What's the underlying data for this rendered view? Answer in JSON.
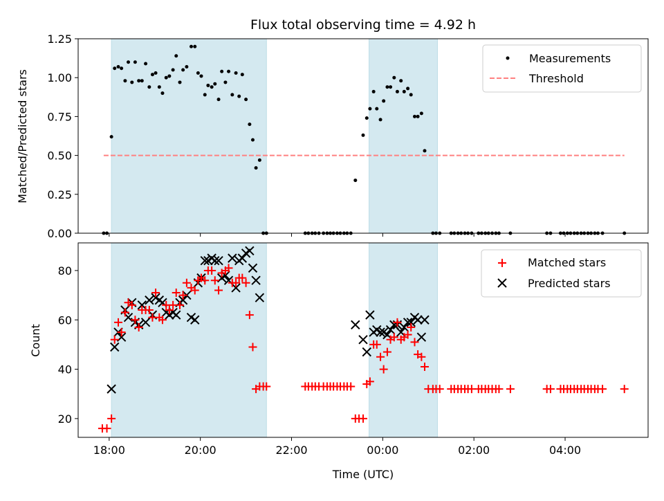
{
  "chart_data": {
    "title": "Flux total observing time = 4.92 h",
    "xlabel": "Time (UTC)",
    "x_unit": "hours since 18:00 UTC (day 1)",
    "x_ticks": [
      {
        "x": 0,
        "label": "18:00"
      },
      {
        "x": 2,
        "label": "20:00"
      },
      {
        "x": 4,
        "label": "22:00"
      },
      {
        "x": 6,
        "label": "00:00"
      },
      {
        "x": 8,
        "label": "02:00"
      },
      {
        "x": 10,
        "label": "04:00"
      }
    ],
    "xlim": [
      -0.68,
      11.82
    ],
    "shaded_intervals": [
      [
        0.05,
        3.45
      ],
      [
        5.7,
        7.2
      ]
    ],
    "shade_color": "#d4e9f0",
    "top": {
      "type": "scatter",
      "ylabel": "Matched/Predicted stars",
      "ylim": [
        0,
        1.25
      ],
      "y_ticks": [
        "0.00",
        "0.25",
        "0.50",
        "0.75",
        "1.00",
        "1.25"
      ],
      "threshold": 0.5,
      "threshold_range": [
        -0.12,
        11.3
      ],
      "legend": [
        {
          "label": "Measurements",
          "marker": "dot",
          "color": "#000000"
        },
        {
          "label": "Threshold",
          "marker": "dashed-line",
          "color": "#ff8080"
        }
      ],
      "measurements": [
        [
          -0.12,
          0
        ],
        [
          -0.05,
          0
        ],
        [
          0.05,
          0.62
        ],
        [
          0.12,
          1.06
        ],
        [
          0.2,
          1.07
        ],
        [
          0.27,
          1.06
        ],
        [
          0.35,
          0.98
        ],
        [
          0.42,
          1.1
        ],
        [
          0.5,
          0.97
        ],
        [
          0.57,
          1.1
        ],
        [
          0.65,
          0.98
        ],
        [
          0.72,
          0.98
        ],
        [
          0.8,
          1.09
        ],
        [
          0.88,
          0.94
        ],
        [
          0.95,
          1.02
        ],
        [
          1.02,
          1.03
        ],
        [
          1.1,
          0.94
        ],
        [
          1.17,
          0.9
        ],
        [
          1.25,
          1.0
        ],
        [
          1.32,
          1.01
        ],
        [
          1.4,
          1.05
        ],
        [
          1.47,
          1.14
        ],
        [
          1.55,
          0.97
        ],
        [
          1.62,
          1.05
        ],
        [
          1.7,
          1.07
        ],
        [
          1.8,
          1.2
        ],
        [
          1.88,
          1.2
        ],
        [
          1.95,
          1.03
        ],
        [
          2.02,
          1.01
        ],
        [
          2.1,
          0.89
        ],
        [
          2.17,
          0.95
        ],
        [
          2.25,
          0.94
        ],
        [
          2.32,
          0.96
        ],
        [
          2.4,
          0.86
        ],
        [
          2.47,
          1.04
        ],
        [
          2.55,
          0.97
        ],
        [
          2.62,
          1.04
        ],
        [
          2.7,
          0.89
        ],
        [
          2.78,
          1.03
        ],
        [
          2.85,
          0.88
        ],
        [
          2.92,
          1.02
        ],
        [
          3.0,
          0.86
        ],
        [
          3.08,
          0.7
        ],
        [
          3.15,
          0.6
        ],
        [
          3.22,
          0.42
        ],
        [
          3.3,
          0.47
        ],
        [
          3.38,
          0
        ],
        [
          3.45,
          0
        ],
        [
          4.3,
          0
        ],
        [
          4.37,
          0
        ],
        [
          4.45,
          0
        ],
        [
          4.52,
          0
        ],
        [
          4.6,
          0
        ],
        [
          4.7,
          0
        ],
        [
          4.78,
          0
        ],
        [
          4.85,
          0
        ],
        [
          4.92,
          0
        ],
        [
          5.0,
          0
        ],
        [
          5.07,
          0
        ],
        [
          5.15,
          0
        ],
        [
          5.22,
          0
        ],
        [
          5.3,
          0
        ],
        [
          5.4,
          0.34
        ],
        [
          5.57,
          0.63
        ],
        [
          5.65,
          0.74
        ],
        [
          5.72,
          0.8
        ],
        [
          5.8,
          0.91
        ],
        [
          5.87,
          0.8
        ],
        [
          5.95,
          0.73
        ],
        [
          6.02,
          0.85
        ],
        [
          6.1,
          0.94
        ],
        [
          6.17,
          0.94
        ],
        [
          6.25,
          1.0
        ],
        [
          6.32,
          0.91
        ],
        [
          6.4,
          0.98
        ],
        [
          6.47,
          0.91
        ],
        [
          6.55,
          0.93
        ],
        [
          6.62,
          0.89
        ],
        [
          6.7,
          0.75
        ],
        [
          6.77,
          0.75
        ],
        [
          6.85,
          0.77
        ],
        [
          6.92,
          0.53
        ],
        [
          7.1,
          0
        ],
        [
          7.17,
          0
        ],
        [
          7.25,
          0
        ],
        [
          7.5,
          0
        ],
        [
          7.57,
          0
        ],
        [
          7.65,
          0
        ],
        [
          7.72,
          0
        ],
        [
          7.8,
          0
        ],
        [
          7.87,
          0
        ],
        [
          7.95,
          0
        ],
        [
          8.1,
          0
        ],
        [
          8.17,
          0
        ],
        [
          8.25,
          0
        ],
        [
          8.32,
          0
        ],
        [
          8.4,
          0
        ],
        [
          8.48,
          0
        ],
        [
          8.55,
          0
        ],
        [
          8.8,
          0
        ],
        [
          9.6,
          0
        ],
        [
          9.68,
          0
        ],
        [
          9.9,
          0
        ],
        [
          9.97,
          0
        ],
        [
          10.05,
          0
        ],
        [
          10.12,
          0
        ],
        [
          10.2,
          0
        ],
        [
          10.27,
          0
        ],
        [
          10.35,
          0
        ],
        [
          10.42,
          0
        ],
        [
          10.5,
          0
        ],
        [
          10.57,
          0
        ],
        [
          10.65,
          0
        ],
        [
          10.72,
          0
        ],
        [
          10.82,
          0
        ],
        [
          11.3,
          0
        ]
      ]
    },
    "bottom": {
      "type": "scatter",
      "ylabel": "Count",
      "ylim": [
        12.4,
        91.2
      ],
      "y_ticks": [
        20,
        40,
        60,
        80
      ],
      "legend": [
        {
          "label": "Matched stars",
          "marker": "plus",
          "color": "#ff0000"
        },
        {
          "label": "Predicted stars",
          "marker": "x",
          "color": "#000000"
        }
      ],
      "matched": [
        [
          -0.15,
          16
        ],
        [
          -0.05,
          16
        ],
        [
          0.05,
          20
        ],
        [
          0.12,
          52
        ],
        [
          0.2,
          59
        ],
        [
          0.27,
          55
        ],
        [
          0.35,
          63
        ],
        [
          0.42,
          67
        ],
        [
          0.5,
          66
        ],
        [
          0.57,
          60
        ],
        [
          0.65,
          57
        ],
        [
          0.72,
          64
        ],
        [
          0.8,
          64
        ],
        [
          0.88,
          64
        ],
        [
          0.95,
          61
        ],
        [
          1.02,
          71
        ],
        [
          1.1,
          61
        ],
        [
          1.17,
          60
        ],
        [
          1.25,
          66
        ],
        [
          1.32,
          64
        ],
        [
          1.4,
          66
        ],
        [
          1.47,
          71
        ],
        [
          1.55,
          66
        ],
        [
          1.62,
          70
        ],
        [
          1.7,
          75
        ],
        [
          1.8,
          73
        ],
        [
          1.88,
          72
        ],
        [
          1.95,
          76
        ],
        [
          2.02,
          77
        ],
        [
          2.1,
          76
        ],
        [
          2.17,
          80
        ],
        [
          2.25,
          80
        ],
        [
          2.32,
          76
        ],
        [
          2.4,
          72
        ],
        [
          2.47,
          79
        ],
        [
          2.55,
          80
        ],
        [
          2.62,
          81
        ],
        [
          2.7,
          75
        ],
        [
          2.78,
          75
        ],
        [
          2.85,
          77
        ],
        [
          2.92,
          77
        ],
        [
          3.0,
          75
        ],
        [
          3.08,
          62
        ],
        [
          3.15,
          49
        ],
        [
          3.22,
          32
        ],
        [
          3.3,
          33
        ],
        [
          3.38,
          33
        ],
        [
          3.45,
          33
        ],
        [
          4.3,
          33
        ],
        [
          4.37,
          33
        ],
        [
          4.45,
          33
        ],
        [
          4.52,
          33
        ],
        [
          4.6,
          33
        ],
        [
          4.7,
          33
        ],
        [
          4.78,
          33
        ],
        [
          4.85,
          33
        ],
        [
          4.92,
          33
        ],
        [
          5.0,
          33
        ],
        [
          5.07,
          33
        ],
        [
          5.15,
          33
        ],
        [
          5.22,
          33
        ],
        [
          5.3,
          33
        ],
        [
          5.4,
          20
        ],
        [
          5.48,
          20
        ],
        [
          5.57,
          20
        ],
        [
          5.65,
          34
        ],
        [
          5.72,
          35
        ],
        [
          5.8,
          50
        ],
        [
          5.87,
          50
        ],
        [
          5.95,
          45
        ],
        [
          6.02,
          40
        ],
        [
          6.1,
          47
        ],
        [
          6.17,
          52
        ],
        [
          6.25,
          53
        ],
        [
          6.32,
          59
        ],
        [
          6.4,
          52
        ],
        [
          6.47,
          53
        ],
        [
          6.55,
          54
        ],
        [
          6.62,
          57
        ],
        [
          6.7,
          51
        ],
        [
          6.77,
          46
        ],
        [
          6.85,
          45
        ],
        [
          6.92,
          41
        ],
        [
          7.0,
          32
        ],
        [
          7.1,
          32
        ],
        [
          7.17,
          32
        ],
        [
          7.25,
          32
        ],
        [
          7.5,
          32
        ],
        [
          7.57,
          32
        ],
        [
          7.65,
          32
        ],
        [
          7.72,
          32
        ],
        [
          7.8,
          32
        ],
        [
          7.87,
          32
        ],
        [
          7.95,
          32
        ],
        [
          8.1,
          32
        ],
        [
          8.17,
          32
        ],
        [
          8.25,
          32
        ],
        [
          8.32,
          32
        ],
        [
          8.4,
          32
        ],
        [
          8.48,
          32
        ],
        [
          8.55,
          32
        ],
        [
          8.8,
          32
        ],
        [
          9.6,
          32
        ],
        [
          9.68,
          32
        ],
        [
          9.9,
          32
        ],
        [
          9.97,
          32
        ],
        [
          10.05,
          32
        ],
        [
          10.12,
          32
        ],
        [
          10.2,
          32
        ],
        [
          10.27,
          32
        ],
        [
          10.35,
          32
        ],
        [
          10.42,
          32
        ],
        [
          10.5,
          32
        ],
        [
          10.57,
          32
        ],
        [
          10.65,
          32
        ],
        [
          10.72,
          32
        ],
        [
          10.82,
          32
        ],
        [
          11.3,
          32
        ]
      ],
      "predicted": [
        [
          0.05,
          32
        ],
        [
          0.12,
          49
        ],
        [
          0.2,
          55
        ],
        [
          0.27,
          53
        ],
        [
          0.35,
          64
        ],
        [
          0.42,
          61
        ],
        [
          0.5,
          67
        ],
        [
          0.57,
          59
        ],
        [
          0.65,
          58
        ],
        [
          0.72,
          66
        ],
        [
          0.8,
          59
        ],
        [
          0.88,
          68
        ],
        [
          0.95,
          62
        ],
        [
          1.02,
          69
        ],
        [
          1.1,
          68
        ],
        [
          1.17,
          67
        ],
        [
          1.25,
          63
        ],
        [
          1.32,
          62
        ],
        [
          1.4,
          63
        ],
        [
          1.47,
          62
        ],
        [
          1.55,
          67
        ],
        [
          1.62,
          68
        ],
        [
          1.7,
          70
        ],
        [
          1.8,
          61
        ],
        [
          1.88,
          60
        ],
        [
          1.95,
          75
        ],
        [
          2.02,
          77
        ],
        [
          2.1,
          84
        ],
        [
          2.17,
          84
        ],
        [
          2.25,
          85
        ],
        [
          2.32,
          84
        ],
        [
          2.4,
          84
        ],
        [
          2.47,
          77
        ],
        [
          2.55,
          78
        ],
        [
          2.62,
          76
        ],
        [
          2.7,
          85
        ],
        [
          2.78,
          73
        ],
        [
          2.85,
          84
        ],
        [
          2.92,
          85
        ],
        [
          3.0,
          87
        ],
        [
          3.08,
          88
        ],
        [
          3.15,
          81
        ],
        [
          3.22,
          76
        ],
        [
          3.3,
          69
        ],
        [
          5.4,
          58
        ],
        [
          5.57,
          52
        ],
        [
          5.65,
          47
        ],
        [
          5.72,
          62
        ],
        [
          5.8,
          55
        ],
        [
          5.87,
          56
        ],
        [
          5.95,
          55
        ],
        [
          6.02,
          55
        ],
        [
          6.1,
          54
        ],
        [
          6.17,
          56
        ],
        [
          6.25,
          58
        ],
        [
          6.32,
          58
        ],
        [
          6.4,
          55
        ],
        [
          6.47,
          57
        ],
        [
          6.55,
          59
        ],
        [
          6.62,
          59
        ],
        [
          6.7,
          61
        ],
        [
          6.77,
          60
        ],
        [
          6.85,
          53
        ],
        [
          6.92,
          60
        ]
      ]
    }
  }
}
